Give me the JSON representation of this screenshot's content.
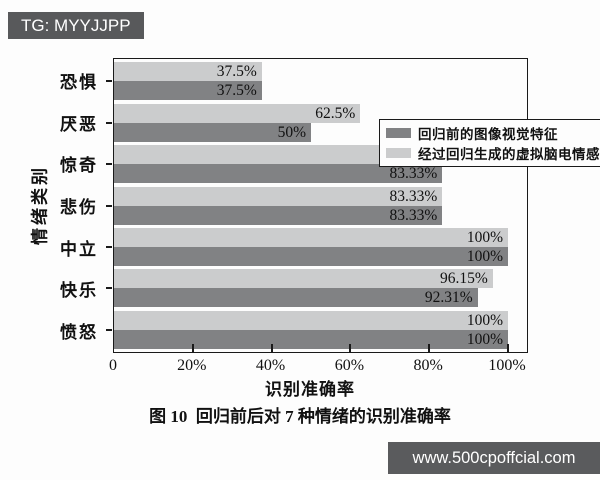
{
  "badge": {
    "text": "TG: MYYJJPP"
  },
  "watermark": {
    "text": "www.500cpoffcial.com"
  },
  "colors": {
    "series_before": "#818284",
    "series_generated": "#cbcccd",
    "badge_bg": "#58595b",
    "watermark_bg": "#5a5b5d",
    "frame": "#1a1a1a"
  },
  "chart_data": {
    "type": "bar",
    "orientation": "horizontal",
    "title": "图 10  回归前后对 7 种情绪的识别准确率",
    "xlabel": "识别准确率",
    "ylabel": "情绪类别",
    "categories": [
      "恐惧",
      "厌恶",
      "惊奇",
      "悲伤",
      "中立",
      "快乐",
      "愤怒"
    ],
    "series": [
      {
        "name": "回归前的图像视觉特征",
        "color": "#818284",
        "values": [
          37.5,
          50,
          83.33,
          83.33,
          100,
          92.31,
          100
        ],
        "labels": [
          "37.5%",
          "50%",
          "83.33%",
          "83.33%",
          "100%",
          "92.31%",
          "100%"
        ]
      },
      {
        "name": "经过回归生成的虚拟脑电情感特征",
        "color": "#cbcccd",
        "values": [
          37.5,
          62.5,
          91.67,
          83.33,
          100,
          96.15,
          100
        ],
        "labels": [
          "37.5%",
          "62.5%",
          "91.67%",
          "83.33%",
          "100%",
          "96.15%",
          "100%"
        ]
      }
    ],
    "bar_display_order_top_to_bottom": [
      "经过回归生成的虚拟脑电情感特征",
      "回归前的图像视觉特征"
    ],
    "value_labels_position": "inside-right",
    "x_ticks": [
      "0",
      "20%",
      "40%",
      "60%",
      "80%",
      "100%"
    ],
    "xlim": [
      0,
      105
    ],
    "grid": false,
    "legend_position": "top-right"
  }
}
